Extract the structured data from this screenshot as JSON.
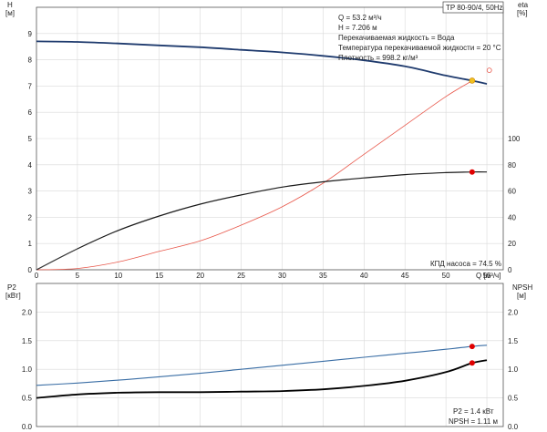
{
  "title_box": "TP 80-90/4, 50Hz",
  "info_lines": [
    "Q = 53.2 м³/ч",
    "H = 7.206 м",
    "Перекачиваемая жидкость = Вода",
    "Температура перекачиваемой жидкости = 20 °C",
    "Плотность = 998.2 кг/м³"
  ],
  "top_axis_labels": {
    "h_letter": "H",
    "h_unit": "[м]",
    "eta_letter": "eta",
    "eta_unit": "[%]",
    "q_label": "Q [м³/ч]"
  },
  "bottom_axis_labels": {
    "p2_letter": "P2",
    "p2_unit": "[кВт]",
    "npsh_letter": "NPSH",
    "npsh_unit": "[м]"
  },
  "efficiency_note": "КПД насоса = 74.5 %",
  "bottom_notes": [
    "P2 = 1.4 кВт",
    "NPSH = 1.11 м"
  ],
  "colors": {
    "h_curve": "#1f3b6e",
    "eta_curve": "#e8574a",
    "p2_curve": "#3a6ea5",
    "npsh_curve": "#000000",
    "marker_red": "#e00000",
    "marker_yellow": "#f0c020",
    "grid": "#d9d9d9"
  },
  "chart_data": [
    {
      "type": "line",
      "xlim": [
        0,
        57
      ],
      "x_ticks": [
        5,
        10,
        15,
        20,
        25,
        30,
        35,
        40,
        45,
        50,
        55
      ],
      "x_tick_labels": [
        "5",
        "10",
        "15",
        "20",
        "25",
        "30",
        "35",
        "40",
        "45",
        "50",
        "55"
      ],
      "ylim_left": [
        0,
        10
      ],
      "y_left_ticks": [
        0,
        1,
        2,
        3,
        4,
        5,
        6,
        7,
        8,
        9
      ],
      "y_left_tick_labels": [
        "0",
        "1",
        "2",
        "3",
        "4",
        "5",
        "6",
        "7",
        "8",
        "9"
      ],
      "ylim_right": [
        0,
        200
      ],
      "y_right_ticks": [
        0,
        20,
        40,
        60,
        80,
        100
      ],
      "y_right_tick_labels": [
        "0",
        "20",
        "40",
        "60",
        "80",
        "100"
      ],
      "grid": true,
      "series": [
        {
          "key": "H",
          "axis": "left",
          "x": [
            0,
            5,
            10,
            15,
            20,
            25,
            30,
            35,
            40,
            45,
            50,
            53.2,
            55
          ],
          "y": [
            8.7,
            8.68,
            8.62,
            8.55,
            8.48,
            8.38,
            8.28,
            8.15,
            7.98,
            7.75,
            7.4,
            7.206,
            7.08
          ]
        },
        {
          "key": "eta",
          "axis": "right",
          "x": [
            0,
            5,
            10,
            15,
            20,
            25,
            30,
            35,
            40,
            45,
            50,
            53.2
          ],
          "y": [
            0,
            1,
            6,
            14,
            22,
            34,
            48,
            66,
            88,
            110,
            132,
            144
          ]
        },
        {
          "key": "eta_dark",
          "axis": "right",
          "x": [
            0,
            5,
            10,
            15,
            20,
            25,
            30,
            35,
            40,
            45,
            50,
            53.2,
            55
          ],
          "y": [
            0,
            16,
            30,
            41,
            50,
            57,
            63,
            67,
            70,
            72.5,
            74,
            74.5,
            74.5
          ]
        },
        {
          "key": "eta_thin",
          "axis": "left",
          "x": [
            0,
            5
          ],
          "y": [
            0,
            0.8
          ]
        }
      ],
      "markers": [
        {
          "axis": "left",
          "x": 53.2,
          "y": 7.206,
          "color": "yellow"
        },
        {
          "axis": "right",
          "x": 53.2,
          "y": 74.5,
          "color": "red"
        },
        {
          "axis": "right",
          "x": 55.3,
          "y": 152,
          "color": "open"
        }
      ]
    },
    {
      "type": "line",
      "xlim": [
        0,
        57
      ],
      "ylim_left": [
        0,
        2.5
      ],
      "y_left_ticks": [
        0.0,
        0.5,
        1.0,
        1.5,
        2.0
      ],
      "y_left_tick_labels": [
        "0.0",
        "0.5",
        "1.0",
        "1.5",
        "2.0"
      ],
      "ylim_right": [
        0,
        2.5
      ],
      "y_right_ticks": [
        0.0,
        0.5,
        1.0,
        1.5,
        2.0
      ],
      "y_right_tick_labels": [
        "0.0",
        "0.5",
        "1.0",
        "1.5",
        "2.0"
      ],
      "grid": true,
      "series": [
        {
          "key": "P2",
          "axis": "left",
          "x": [
            0,
            5,
            10,
            15,
            20,
            25,
            30,
            35,
            40,
            45,
            50,
            53.2,
            55
          ],
          "y": [
            0.72,
            0.76,
            0.81,
            0.87,
            0.93,
            1.0,
            1.07,
            1.14,
            1.21,
            1.28,
            1.35,
            1.4,
            1.42
          ]
        },
        {
          "key": "NPSH",
          "axis": "right",
          "x": [
            0,
            5,
            10,
            15,
            20,
            25,
            30,
            35,
            40,
            45,
            50,
            53.2,
            55
          ],
          "y": [
            0.5,
            0.56,
            0.59,
            0.6,
            0.6,
            0.61,
            0.62,
            0.65,
            0.71,
            0.8,
            0.95,
            1.11,
            1.16
          ]
        }
      ],
      "markers": [
        {
          "axis": "left",
          "x": 53.2,
          "y": 1.4,
          "color": "red"
        },
        {
          "axis": "right",
          "x": 53.2,
          "y": 1.11,
          "color": "red"
        }
      ]
    }
  ]
}
